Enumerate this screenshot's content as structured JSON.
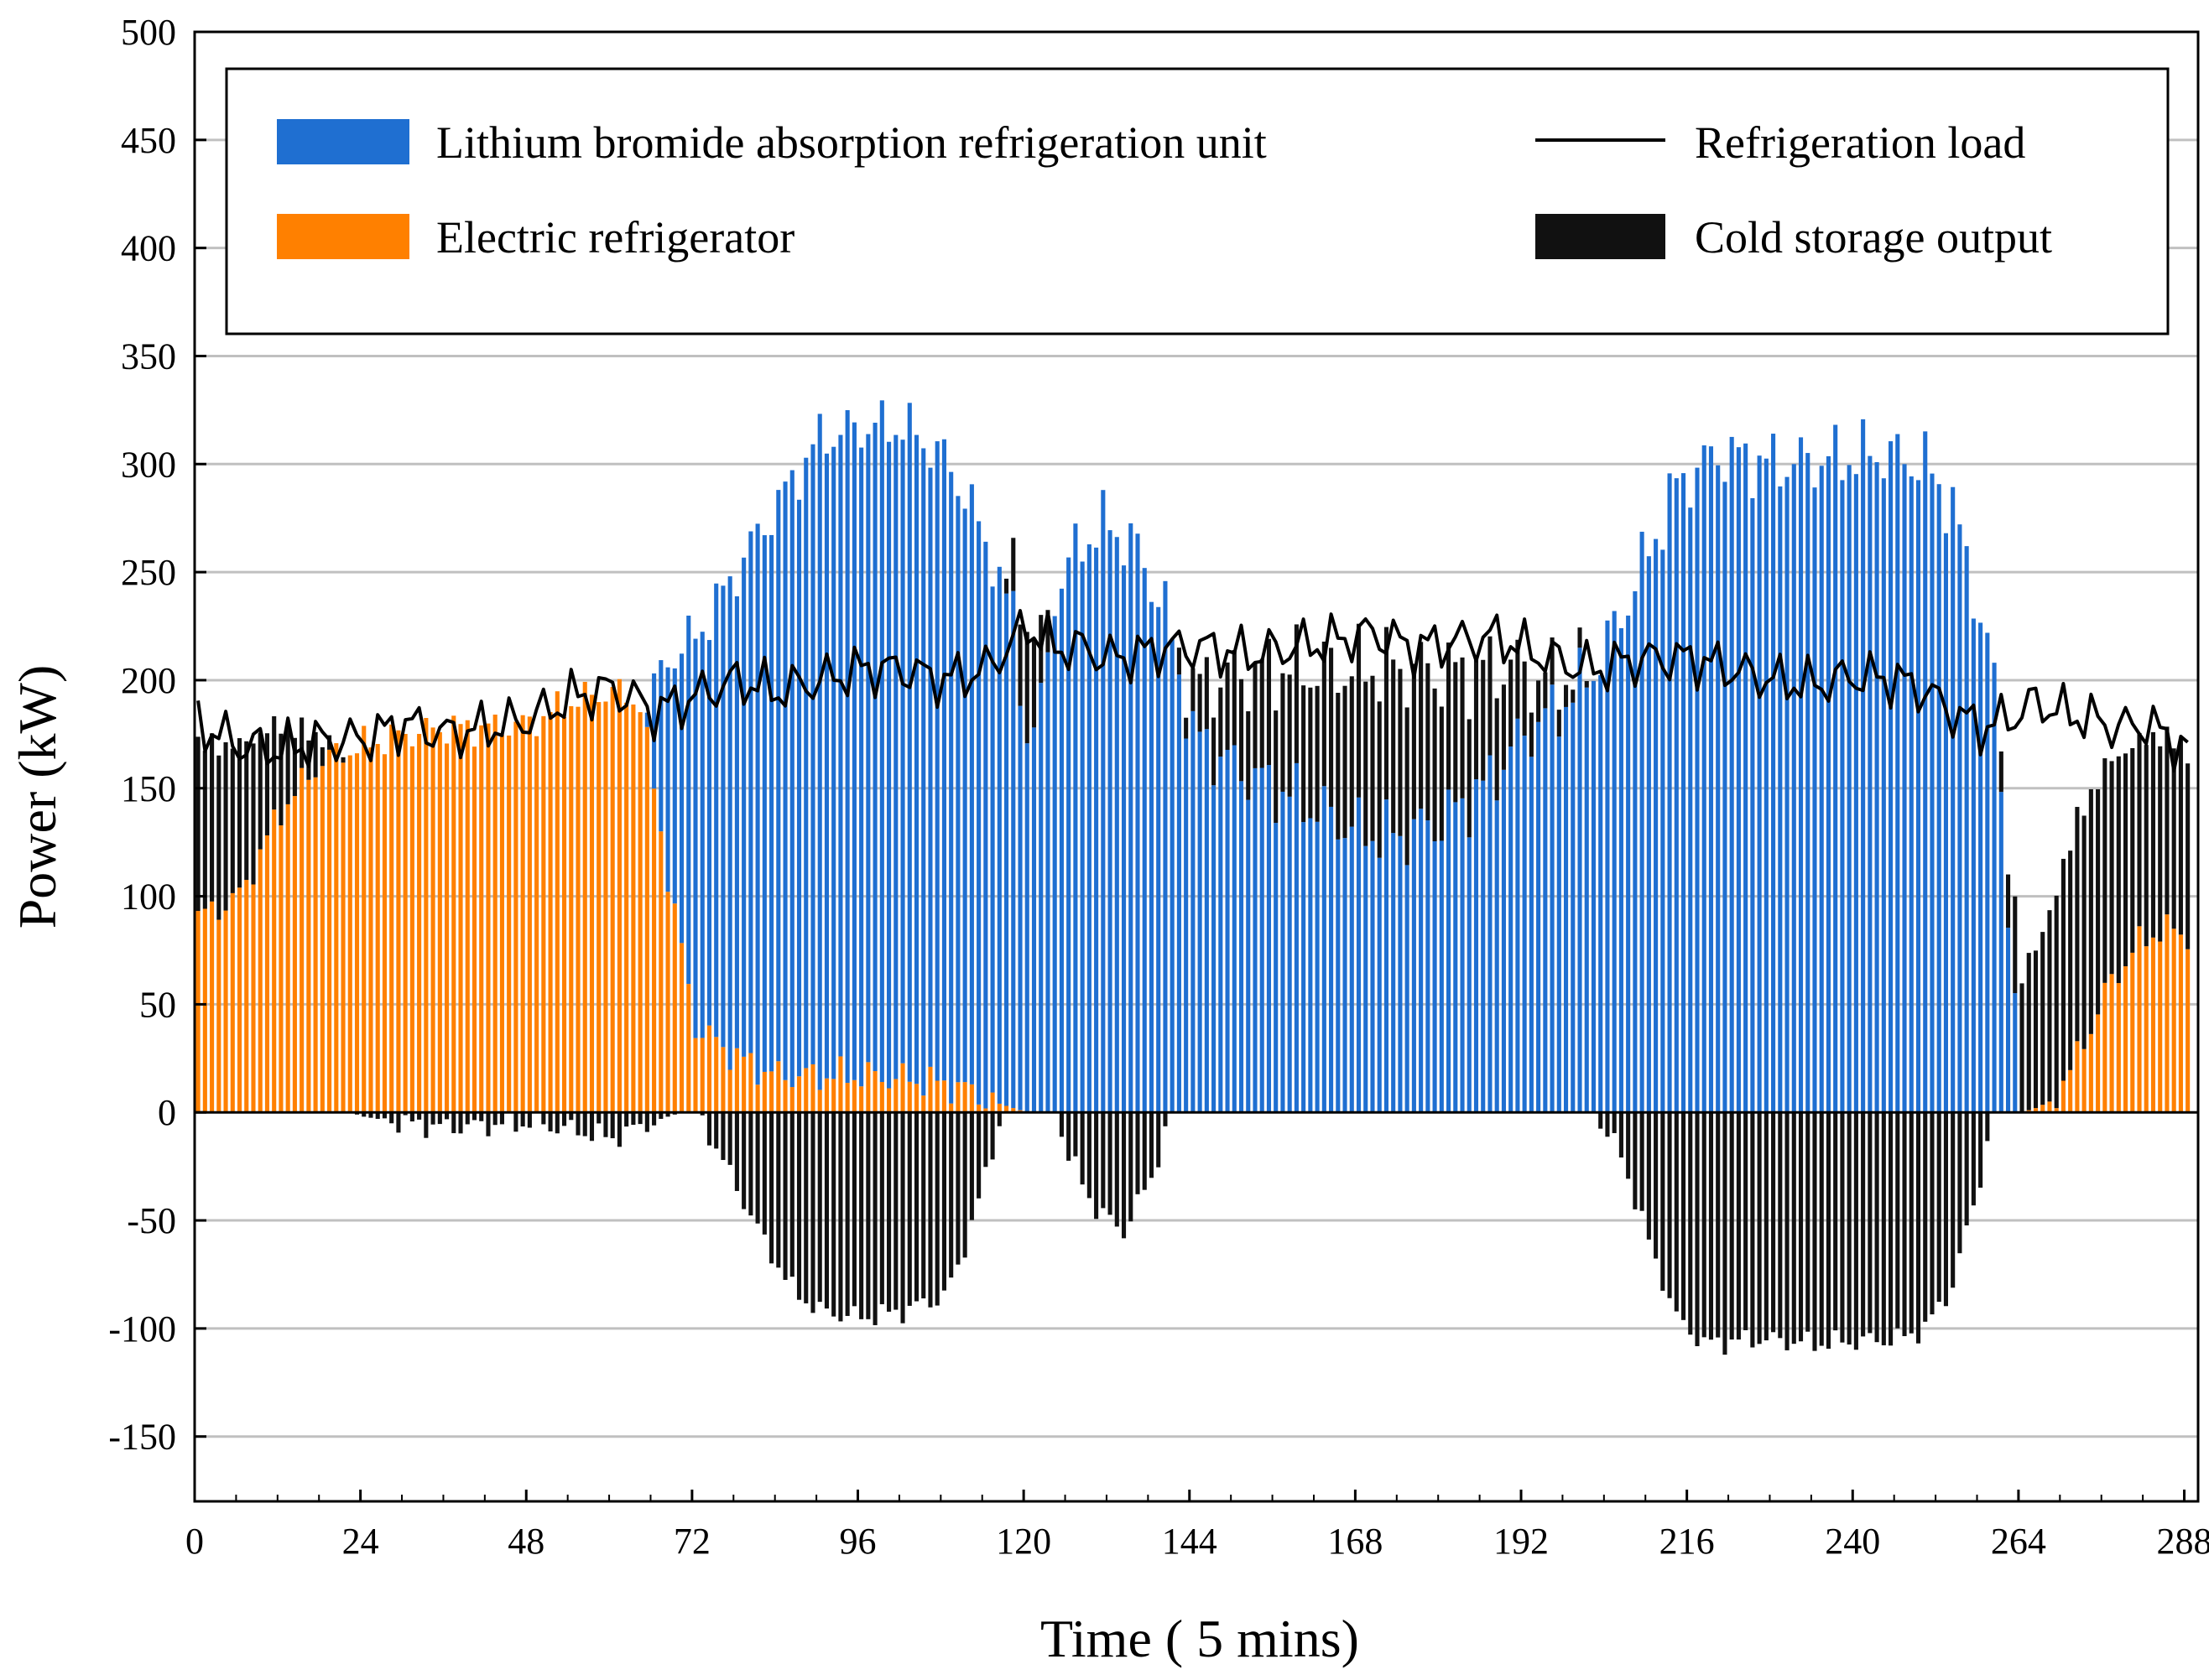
{
  "chart_data": {
    "type": "bar",
    "xlabel": "Time ( 5 mins)",
    "ylabel": "Power (kW)",
    "xlim": [
      0,
      290
    ],
    "ylim": [
      -180,
      500
    ],
    "xticks": [
      0,
      24,
      48,
      72,
      96,
      120,
      144,
      168,
      192,
      216,
      240,
      264,
      288
    ],
    "yticks": [
      -150,
      -100,
      -50,
      0,
      50,
      100,
      150,
      200,
      250,
      300,
      350,
      400,
      450,
      500
    ],
    "grid": true,
    "legend_position": "top",
    "colors": {
      "absorption": "#1f6fd1",
      "electric": "#ff8000",
      "storage": "#111111",
      "load": "#000000",
      "grid": "#c0c0c0"
    },
    "legend": [
      {
        "key": "absorption",
        "label": "Lithium bromide absorption refrigeration unit",
        "kind": "bar"
      },
      {
        "key": "load",
        "label": "Refrigeration load",
        "kind": "line"
      },
      {
        "key": "electric",
        "label": "Electric refrigerator",
        "kind": "bar"
      },
      {
        "key": "storage",
        "label": "Cold storage output",
        "kind": "bar"
      }
    ],
    "series_profile": {
      "electric_refrigerator": [
        [
          0,
          90
        ],
        [
          6,
          100
        ],
        [
          12,
          140
        ],
        [
          18,
          163
        ],
        [
          24,
          170
        ],
        [
          30,
          175
        ],
        [
          36,
          178
        ],
        [
          42,
          178
        ],
        [
          48,
          180
        ],
        [
          54,
          190
        ],
        [
          60,
          195
        ],
        [
          64,
          190
        ],
        [
          66,
          150
        ],
        [
          68,
          110
        ],
        [
          70,
          75
        ],
        [
          72,
          40
        ],
        [
          76,
          30
        ],
        [
          80,
          22
        ],
        [
          84,
          17
        ],
        [
          96,
          17
        ],
        [
          104,
          15
        ],
        [
          110,
          12
        ],
        [
          116,
          4
        ],
        [
          120,
          0
        ],
        [
          264,
          0
        ],
        [
          266,
          2
        ],
        [
          268,
          5
        ],
        [
          272,
          25
        ],
        [
          276,
          55
        ],
        [
          280,
          75
        ],
        [
          284,
          85
        ],
        [
          288,
          82
        ]
      ],
      "absorption_refrigeration": [
        [
          0,
          0
        ],
        [
          64,
          0
        ],
        [
          66,
          45
        ],
        [
          68,
          100
        ],
        [
          70,
          140
        ],
        [
          72,
          180
        ],
        [
          76,
          210
        ],
        [
          80,
          240
        ],
        [
          84,
          265
        ],
        [
          90,
          295
        ],
        [
          96,
          300
        ],
        [
          102,
          302
        ],
        [
          108,
          290
        ],
        [
          112,
          270
        ],
        [
          116,
          245
        ],
        [
          118,
          225
        ],
        [
          120,
          175
        ],
        [
          122,
          185
        ],
        [
          124,
          240
        ],
        [
          128,
          265
        ],
        [
          132,
          272
        ],
        [
          136,
          260
        ],
        [
          140,
          232
        ],
        [
          144,
          175
        ],
        [
          150,
          160
        ],
        [
          156,
          150
        ],
        [
          162,
          140
        ],
        [
          168,
          130
        ],
        [
          174,
          128
        ],
        [
          180,
          135
        ],
        [
          186,
          150
        ],
        [
          192,
          175
        ],
        [
          198,
          190
        ],
        [
          202,
          205
        ],
        [
          206,
          230
        ],
        [
          210,
          260
        ],
        [
          214,
          290
        ],
        [
          220,
          305
        ],
        [
          228,
          300
        ],
        [
          236,
          302
        ],
        [
          244,
          305
        ],
        [
          250,
          300
        ],
        [
          254,
          280
        ],
        [
          258,
          230
        ],
        [
          260,
          200
        ],
        [
          264,
          0
        ],
        [
          288,
          0
        ]
      ],
      "cold_storage": [
        [
          0,
          80
        ],
        [
          6,
          70
        ],
        [
          12,
          40
        ],
        [
          18,
          10
        ],
        [
          22,
          0
        ],
        [
          24,
          -2
        ],
        [
          30,
          -5
        ],
        [
          36,
          -7
        ],
        [
          42,
          -6
        ],
        [
          48,
          -5
        ],
        [
          54,
          -8
        ],
        [
          60,
          -12
        ],
        [
          66,
          -4
        ],
        [
          70,
          0
        ],
        [
          72,
          0
        ],
        [
          74,
          -10
        ],
        [
          78,
          -35
        ],
        [
          82,
          -60
        ],
        [
          86,
          -82
        ],
        [
          90,
          -92
        ],
        [
          96,
          -95
        ],
        [
          102,
          -92
        ],
        [
          108,
          -85
        ],
        [
          110,
          -72
        ],
        [
          114,
          -30
        ],
        [
          116,
          -5
        ],
        [
          118,
          20
        ],
        [
          120,
          55
        ],
        [
          122,
          30
        ],
        [
          124,
          0
        ],
        [
          126,
          -20
        ],
        [
          130,
          -45
        ],
        [
          134,
          -55
        ],
        [
          138,
          -30
        ],
        [
          140,
          -10
        ],
        [
          142,
          10
        ],
        [
          146,
          30
        ],
        [
          150,
          42
        ],
        [
          156,
          55
        ],
        [
          162,
          65
        ],
        [
          168,
          75
        ],
        [
          172,
          78
        ],
        [
          176,
          75
        ],
        [
          180,
          68
        ],
        [
          186,
          55
        ],
        [
          190,
          40
        ],
        [
          194,
          20
        ],
        [
          198,
          12
        ],
        [
          202,
          0
        ],
        [
          206,
          -20
        ],
        [
          210,
          -60
        ],
        [
          214,
          -95
        ],
        [
          218,
          -107
        ],
        [
          226,
          -105
        ],
        [
          234,
          -107
        ],
        [
          240,
          -106
        ],
        [
          246,
          -105
        ],
        [
          250,
          -100
        ],
        [
          254,
          -80
        ],
        [
          258,
          -30
        ],
        [
          260,
          0
        ],
        [
          262,
          30
        ],
        [
          264,
          60
        ],
        [
          268,
          90
        ],
        [
          272,
          110
        ],
        [
          276,
          105
        ],
        [
          280,
          95
        ],
        [
          284,
          90
        ],
        [
          288,
          85
        ]
      ],
      "refrigeration_load": [
        [
          0,
          180
        ],
        [
          6,
          170
        ],
        [
          12,
          168
        ],
        [
          18,
          172
        ],
        [
          24,
          173
        ],
        [
          30,
          180
        ],
        [
          36,
          175
        ],
        [
          42,
          178
        ],
        [
          48,
          182
        ],
        [
          54,
          192
        ],
        [
          60,
          196
        ],
        [
          64,
          190
        ],
        [
          66,
          185
        ],
        [
          70,
          190
        ],
        [
          74,
          195
        ],
        [
          78,
          200
        ],
        [
          84,
          195
        ],
        [
          90,
          200
        ],
        [
          96,
          205
        ],
        [
          102,
          205
        ],
        [
          108,
          200
        ],
        [
          114,
          205
        ],
        [
          118,
          218
        ],
        [
          120,
          225
        ],
        [
          124,
          215
        ],
        [
          128,
          215
        ],
        [
          132,
          210
        ],
        [
          136,
          212
        ],
        [
          140,
          215
        ],
        [
          146,
          215
        ],
        [
          152,
          212
        ],
        [
          158,
          215
        ],
        [
          164,
          218
        ],
        [
          170,
          222
        ],
        [
          176,
          215
        ],
        [
          182,
          218
        ],
        [
          188,
          220
        ],
        [
          194,
          212
        ],
        [
          198,
          208
        ],
        [
          202,
          205
        ],
        [
          206,
          208
        ],
        [
          210,
          210
        ],
        [
          216,
          210
        ],
        [
          222,
          205
        ],
        [
          228,
          200
        ],
        [
          234,
          198
        ],
        [
          240,
          202
        ],
        [
          246,
          200
        ],
        [
          250,
          195
        ],
        [
          254,
          185
        ],
        [
          258,
          178
        ],
        [
          262,
          182
        ],
        [
          266,
          190
        ],
        [
          270,
          185
        ],
        [
          274,
          182
        ],
        [
          278,
          178
        ],
        [
          282,
          180
        ],
        [
          286,
          172
        ],
        [
          288,
          168
        ]
      ]
    }
  }
}
